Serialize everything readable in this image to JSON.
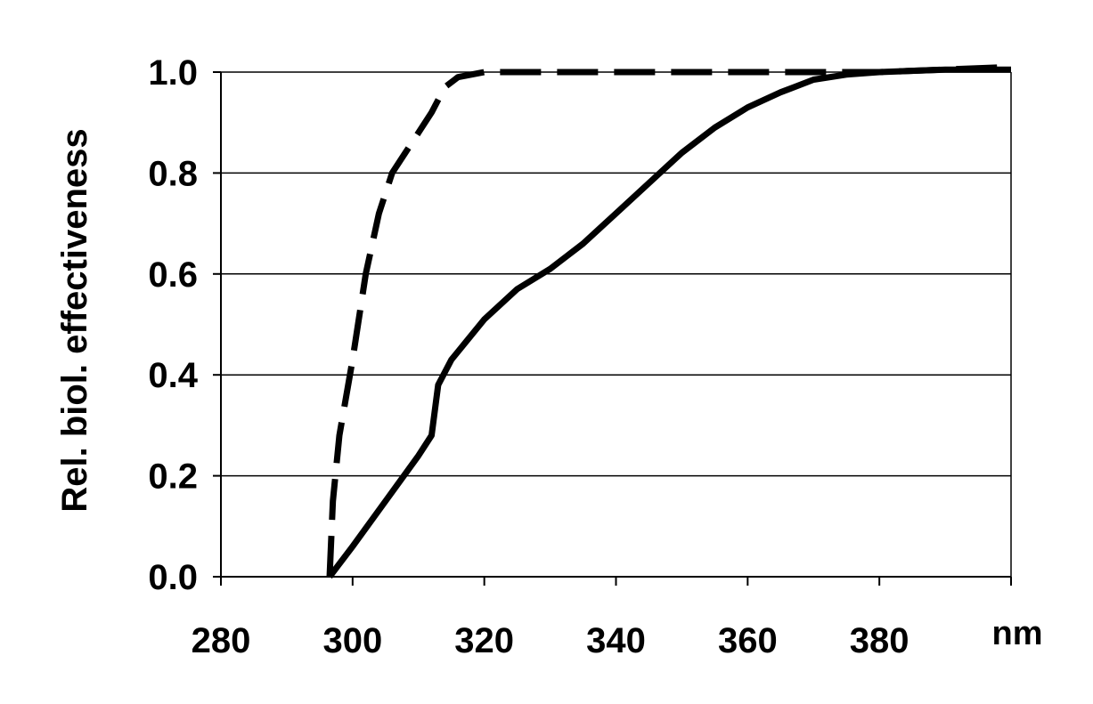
{
  "chart_data": {
    "type": "line",
    "title": "",
    "xlabel": "",
    "x_unit": "nm",
    "ylabel": "Rel. biol. effectiveness",
    "xlim": [
      280,
      400
    ],
    "ylim": [
      0,
      1.0
    ],
    "x_ticks": [
      "280",
      "300",
      "320",
      "340",
      "360",
      "380"
    ],
    "y_ticks": [
      "0.0",
      "0.2",
      "0.4",
      "0.6",
      "0.8",
      "1.0"
    ],
    "grid": "horizontal",
    "legend": "none",
    "series": [
      {
        "style": "dashed",
        "color": "#000000",
        "points": [
          [
            296.5,
            0.0
          ],
          [
            297,
            0.15
          ],
          [
            298,
            0.28
          ],
          [
            300,
            0.43
          ],
          [
            302,
            0.6
          ],
          [
            304,
            0.72
          ],
          [
            306,
            0.8
          ],
          [
            308,
            0.84
          ],
          [
            310,
            0.88
          ],
          [
            312,
            0.92
          ],
          [
            314,
            0.97
          ],
          [
            316,
            0.99
          ],
          [
            320,
            1.0
          ],
          [
            340,
            1.0
          ],
          [
            360,
            1.0
          ],
          [
            380,
            1.0
          ],
          [
            400,
            1.01
          ]
        ]
      },
      {
        "style": "solid",
        "color": "#000000",
        "points": [
          [
            296.5,
            0.0
          ],
          [
            300,
            0.06
          ],
          [
            305,
            0.15
          ],
          [
            310,
            0.24
          ],
          [
            312,
            0.28
          ],
          [
            313,
            0.38
          ],
          [
            315,
            0.43
          ],
          [
            320,
            0.51
          ],
          [
            325,
            0.57
          ],
          [
            330,
            0.61
          ],
          [
            335,
            0.66
          ],
          [
            340,
            0.72
          ],
          [
            345,
            0.78
          ],
          [
            350,
            0.84
          ],
          [
            355,
            0.89
          ],
          [
            360,
            0.93
          ],
          [
            365,
            0.96
          ],
          [
            370,
            0.985
          ],
          [
            375,
            0.995
          ],
          [
            380,
            1.0
          ],
          [
            390,
            1.005
          ],
          [
            400,
            1.005
          ]
        ]
      }
    ]
  }
}
